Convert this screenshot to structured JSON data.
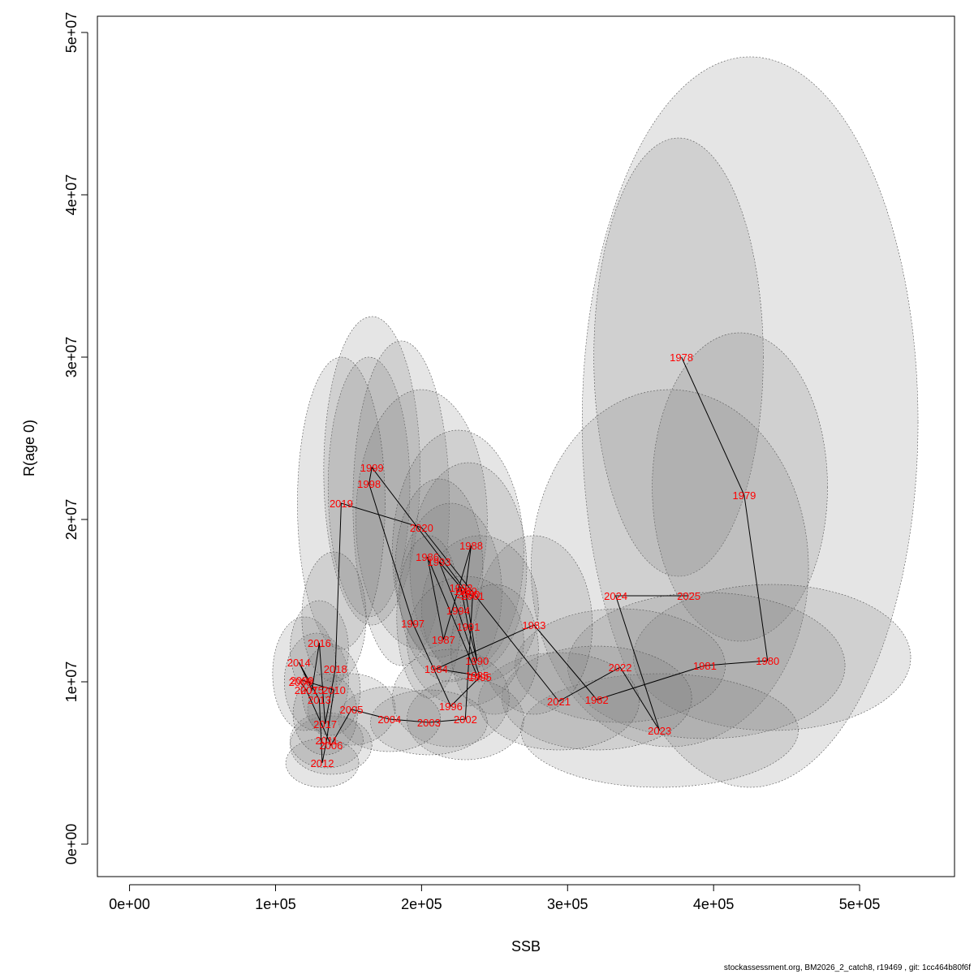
{
  "footer": "stockassessment.org, BM2026_2_catch8, r19469 , git: 1cc464b80f6f",
  "chart_data": {
    "type": "scatter",
    "xlabel": "SSB",
    "ylabel": "R(age 0)",
    "xlim": [
      -22000,
      565000
    ],
    "ylim": [
      -2000000,
      51000000
    ],
    "x_ticks": [
      0,
      100000,
      200000,
      300000,
      400000,
      500000
    ],
    "x_tick_labels": [
      "0e+00",
      "1e+05",
      "2e+05",
      "3e+05",
      "4e+05",
      "5e+05"
    ],
    "y_ticks": [
      0,
      10000000,
      20000000,
      30000000,
      40000000,
      50000000
    ],
    "y_tick_labels": [
      "0e+00",
      "1e+07",
      "2e+07",
      "3e+07",
      "4e+07",
      "5e+07"
    ],
    "colors": {
      "point_label": "#ff0000",
      "line": "#000000",
      "ellipse_fill": "#7f7f7f",
      "ellipse_stroke": "#555555"
    },
    "points": [
      {
        "year": "1978",
        "x": 378000,
        "y": 30000000
      },
      {
        "year": "1979",
        "x": 421000,
        "y": 21500000
      },
      {
        "year": "1980",
        "x": 437000,
        "y": 11300000
      },
      {
        "year": "1981",
        "x": 394000,
        "y": 11000000
      },
      {
        "year": "1982",
        "x": 320000,
        "y": 8900000
      },
      {
        "year": "1983",
        "x": 277000,
        "y": 13500000
      },
      {
        "year": "1984",
        "x": 210000,
        "y": 10800000
      },
      {
        "year": "1985",
        "x": 238000,
        "y": 10400000
      },
      {
        "year": "1986",
        "x": 204000,
        "y": 17700000
      },
      {
        "year": "1987",
        "x": 215000,
        "y": 12600000
      },
      {
        "year": "1988",
        "x": 234000,
        "y": 18400000
      },
      {
        "year": "1989",
        "x": 230000,
        "y": 15600000
      },
      {
        "year": "1990",
        "x": 238000,
        "y": 11300000
      },
      {
        "year": "1991",
        "x": 232000,
        "y": 13400000
      },
      {
        "year": "1992",
        "x": 227000,
        "y": 15800000
      },
      {
        "year": "1993",
        "x": 212000,
        "y": 17400000
      },
      {
        "year": "1994",
        "x": 225000,
        "y": 14400000
      },
      {
        "year": "1995",
        "x": 240000,
        "y": 10300000
      },
      {
        "year": "1996",
        "x": 220000,
        "y": 8500000
      },
      {
        "year": "1997",
        "x": 194000,
        "y": 13600000
      },
      {
        "year": "1998",
        "x": 164000,
        "y": 22200000
      },
      {
        "year": "1999",
        "x": 166000,
        "y": 23200000
      },
      {
        "year": "2000",
        "x": 232000,
        "y": 15400000
      },
      {
        "year": "2001",
        "x": 235000,
        "y": 15300000
      },
      {
        "year": "2002",
        "x": 230000,
        "y": 7700000
      },
      {
        "year": "2003",
        "x": 205000,
        "y": 7500000
      },
      {
        "year": "2004",
        "x": 178000,
        "y": 7700000
      },
      {
        "year": "2005",
        "x": 152000,
        "y": 8300000
      },
      {
        "year": "2006",
        "x": 138000,
        "y": 6100000
      },
      {
        "year": "2007",
        "x": 121000,
        "y": 9500000
      },
      {
        "year": "2008",
        "x": 117000,
        "y": 10000000
      },
      {
        "year": "2009",
        "x": 118000,
        "y": 10100000
      },
      {
        "year": "2010",
        "x": 140000,
        "y": 9500000
      },
      {
        "year": "2011",
        "x": 135000,
        "y": 6400000
      },
      {
        "year": "2012",
        "x": 132000,
        "y": 5000000
      },
      {
        "year": "2013",
        "x": 130000,
        "y": 8900000
      },
      {
        "year": "2014",
        "x": 116000,
        "y": 11200000
      },
      {
        "year": "2015",
        "x": 125000,
        "y": 9500000
      },
      {
        "year": "2016",
        "x": 130000,
        "y": 12400000
      },
      {
        "year": "2017",
        "x": 134000,
        "y": 7400000
      },
      {
        "year": "2018",
        "x": 141000,
        "y": 10800000
      },
      {
        "year": "2019",
        "x": 145000,
        "y": 21000000
      },
      {
        "year": "2020",
        "x": 200000,
        "y": 19500000
      },
      {
        "year": "2021",
        "x": 294000,
        "y": 8800000
      },
      {
        "year": "2022",
        "x": 336000,
        "y": 10900000
      },
      {
        "year": "2023",
        "x": 363000,
        "y": 7000000
      },
      {
        "year": "2024",
        "x": 333000,
        "y": 15300000
      },
      {
        "year": "2025",
        "x": 383000,
        "y": 15300000
      }
    ],
    "ellipses": [
      {
        "cx": 425000,
        "cy": 26000000,
        "rx": 115000,
        "ry": 22500000
      },
      {
        "cx": 376000,
        "cy": 30000000,
        "rx": 58000,
        "ry": 13500000
      },
      {
        "cx": 418000,
        "cy": 22000000,
        "rx": 60000,
        "ry": 9500000
      },
      {
        "cx": 370000,
        "cy": 17000000,
        "rx": 95000,
        "ry": 11000000
      },
      {
        "cx": 440000,
        "cy": 11500000,
        "rx": 95000,
        "ry": 4500000
      },
      {
        "cx": 395000,
        "cy": 11000000,
        "rx": 95000,
        "ry": 4500000
      },
      {
        "cx": 363000,
        "cy": 7000000,
        "rx": 95000,
        "ry": 3500000
      },
      {
        "cx": 336000,
        "cy": 11000000,
        "rx": 72000,
        "ry": 3500000
      },
      {
        "cx": 320000,
        "cy": 9000000,
        "rx": 65000,
        "ry": 3200000
      },
      {
        "cx": 294000,
        "cy": 8800000,
        "rx": 55000,
        "ry": 3000000
      },
      {
        "cx": 277000,
        "cy": 13500000,
        "rx": 40000,
        "ry": 5500000
      },
      {
        "cx": 166000,
        "cy": 23000000,
        "rx": 33000,
        "ry": 9500000
      },
      {
        "cx": 164000,
        "cy": 22000000,
        "rx": 28000,
        "ry": 8000000
      },
      {
        "cx": 186000,
        "cy": 21000000,
        "rx": 33000,
        "ry": 10000000
      },
      {
        "cx": 200000,
        "cy": 20000000,
        "rx": 45000,
        "ry": 8000000
      },
      {
        "cx": 145000,
        "cy": 21000000,
        "rx": 30000,
        "ry": 9000000
      },
      {
        "cx": 225000,
        "cy": 18000000,
        "rx": 45000,
        "ry": 7500000
      },
      {
        "cx": 232000,
        "cy": 17000000,
        "rx": 40000,
        "ry": 6500000
      },
      {
        "cx": 220000,
        "cy": 15500000,
        "rx": 35000,
        "ry": 5500000
      },
      {
        "cx": 240000,
        "cy": 14500000,
        "rx": 40000,
        "ry": 4500000
      },
      {
        "cx": 212000,
        "cy": 17000000,
        "rx": 30000,
        "ry": 5500000
      },
      {
        "cx": 205000,
        "cy": 14000000,
        "rx": 22000,
        "ry": 5000000
      },
      {
        "cx": 230000,
        "cy": 12500000,
        "rx": 40000,
        "ry": 4000000
      },
      {
        "cx": 250000,
        "cy": 12000000,
        "rx": 30000,
        "ry": 4000000
      },
      {
        "cx": 220000,
        "cy": 9000000,
        "rx": 40000,
        "ry": 3000000
      },
      {
        "cx": 230000,
        "cy": 7700000,
        "rx": 40000,
        "ry": 2500000
      },
      {
        "cx": 205000,
        "cy": 7500000,
        "rx": 40000,
        "ry": 2000000
      },
      {
        "cx": 178000,
        "cy": 7700000,
        "rx": 35000,
        "ry": 2000000
      },
      {
        "cx": 152000,
        "cy": 8300000,
        "rx": 30000,
        "ry": 2200000
      },
      {
        "cx": 138000,
        "cy": 6100000,
        "rx": 28000,
        "ry": 1800000
      },
      {
        "cx": 132000,
        "cy": 5000000,
        "rx": 25000,
        "ry": 1500000
      },
      {
        "cx": 135000,
        "cy": 6400000,
        "rx": 25000,
        "ry": 1700000
      },
      {
        "cx": 120000,
        "cy": 10500000,
        "rx": 22000,
        "ry": 3500000
      },
      {
        "cx": 128000,
        "cy": 10000000,
        "rx": 22000,
        "ry": 3000000
      },
      {
        "cx": 138000,
        "cy": 9500000,
        "rx": 20000,
        "ry": 2800000
      },
      {
        "cx": 130000,
        "cy": 12000000,
        "rx": 20000,
        "ry": 3000000
      },
      {
        "cx": 134000,
        "cy": 8000000,
        "rx": 22000,
        "ry": 2500000
      },
      {
        "cx": 140000,
        "cy": 14000000,
        "rx": 22000,
        "ry": 4000000
      }
    ]
  }
}
